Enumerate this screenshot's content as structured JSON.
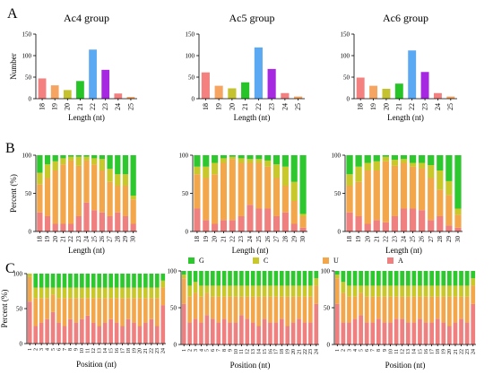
{
  "panel_letters": [
    "A",
    "B",
    "C"
  ],
  "colors": {
    "A": "#F08080",
    "U": "#F4A64A",
    "C": "#C8C82A",
    "G": "#2DC82D"
  },
  "chart_data": [
    {
      "type": "bar",
      "id": "A1",
      "title": "Ac4 group",
      "xlabel": "Length (nt)",
      "ylabel": "Number",
      "ylim": [
        0,
        150
      ],
      "yticks": [
        0,
        50,
        100,
        150
      ],
      "categories": [
        "18",
        "19",
        "20",
        "21",
        "22",
        "23",
        "24",
        "25"
      ],
      "values": [
        47,
        31,
        20,
        41,
        114,
        67,
        12,
        4
      ],
      "bar_colors": [
        "#F4807F",
        "#F6A462",
        "#C4C22E",
        "#27C427",
        "#5BA9F3",
        "#A628E0",
        "#F28080",
        "#F6A462"
      ],
      "grid": false
    },
    {
      "type": "bar",
      "id": "A2",
      "title": "Ac5 group",
      "xlabel": "Length (nt)",
      "ylabel": "",
      "ylim": [
        0,
        150
      ],
      "yticks": [
        0,
        50,
        100,
        150
      ],
      "categories": [
        "18",
        "19",
        "20",
        "21",
        "22",
        "23",
        "24",
        "25"
      ],
      "values": [
        61,
        30,
        24,
        38,
        119,
        69,
        13,
        5
      ],
      "bar_colors": [
        "#F4807F",
        "#F6A462",
        "#C4C22E",
        "#27C427",
        "#5BA9F3",
        "#A628E0",
        "#F28080",
        "#F6A462"
      ],
      "grid": false
    },
    {
      "type": "bar",
      "id": "A3",
      "title": "Ac6 group",
      "xlabel": "Length (nt)",
      "ylabel": "",
      "ylim": [
        0,
        150
      ],
      "yticks": [
        0,
        50,
        100,
        150
      ],
      "categories": [
        "18",
        "19",
        "20",
        "21",
        "22",
        "23",
        "24",
        "25"
      ],
      "values": [
        49,
        30,
        23,
        35,
        112,
        62,
        13,
        5
      ],
      "bar_colors": [
        "#F4807F",
        "#F6A462",
        "#C4C22E",
        "#27C427",
        "#5BA9F3",
        "#A628E0",
        "#F28080",
        "#F6A462"
      ],
      "grid": false
    },
    {
      "type": "bar",
      "stacked": true,
      "id": "B1",
      "xlabel": "Length (nt)",
      "ylabel": "Percent (%)",
      "ylim": [
        0,
        100
      ],
      "yticks": [
        0,
        50,
        100
      ],
      "categories": [
        "18",
        "19",
        "20",
        "21",
        "22",
        "23",
        "24",
        "25",
        "26",
        "27",
        "28",
        "29",
        "30"
      ],
      "series": [
        {
          "name": "A",
          "values": [
            25,
            20,
            10,
            10,
            10,
            20,
            38,
            28,
            25,
            20,
            25,
            20,
            10
          ]
        },
        {
          "name": "U",
          "values": [
            37,
            50,
            70,
            78,
            83,
            66,
            55,
            60,
            55,
            45,
            35,
            40,
            32
          ]
        },
        {
          "name": "C",
          "values": [
            15,
            18,
            12,
            8,
            5,
            12,
            5,
            8,
            15,
            17,
            15,
            15,
            5
          ]
        },
        {
          "name": "G",
          "values": [
            23,
            12,
            8,
            4,
            2,
            2,
            2,
            4,
            5,
            18,
            25,
            25,
            53
          ]
        }
      ]
    },
    {
      "type": "bar",
      "stacked": true,
      "id": "B2",
      "xlabel": "Length (nt)",
      "ylabel": "",
      "ylim": [
        0,
        100
      ],
      "yticks": [
        0,
        50,
        100
      ],
      "categories": [
        "18",
        "19",
        "20",
        "21",
        "22",
        "23",
        "24",
        "25",
        "26",
        "27",
        "28",
        "29",
        "30"
      ],
      "series": [
        {
          "name": "A",
          "values": [
            30,
            15,
            10,
            15,
            15,
            20,
            35,
            30,
            30,
            20,
            25,
            10,
            5
          ]
        },
        {
          "name": "U",
          "values": [
            45,
            55,
            65,
            75,
            80,
            70,
            55,
            60,
            55,
            50,
            35,
            30,
            15
          ]
        },
        {
          "name": "C",
          "values": [
            10,
            15,
            15,
            6,
            3,
            6,
            5,
            5,
            8,
            18,
            25,
            25,
            3
          ]
        },
        {
          "name": "G",
          "values": [
            15,
            15,
            10,
            4,
            2,
            4,
            5,
            5,
            7,
            12,
            15,
            35,
            77
          ]
        }
      ]
    },
    {
      "type": "bar",
      "stacked": true,
      "id": "B3",
      "xlabel": "Length (nt)",
      "ylabel": "",
      "ylim": [
        0,
        100
      ],
      "yticks": [
        0,
        50,
        100
      ],
      "categories": [
        "18",
        "19",
        "20",
        "21",
        "22",
        "23",
        "24",
        "25",
        "26",
        "27",
        "28",
        "29",
        "30"
      ],
      "series": [
        {
          "name": "A",
          "values": [
            25,
            20,
            10,
            15,
            12,
            20,
            30,
            30,
            28,
            15,
            20,
            8,
            5
          ]
        },
        {
          "name": "U",
          "values": [
            35,
            45,
            70,
            65,
            80,
            66,
            60,
            55,
            55,
            55,
            35,
            40,
            17
          ]
        },
        {
          "name": "C",
          "values": [
            15,
            20,
            10,
            12,
            6,
            8,
            5,
            5,
            7,
            17,
            25,
            18,
            8
          ]
        },
        {
          "name": "G",
          "values": [
            25,
            15,
            10,
            8,
            2,
            6,
            5,
            10,
            10,
            13,
            20,
            34,
            70
          ]
        }
      ]
    },
    {
      "type": "bar",
      "stacked": true,
      "id": "C1",
      "xlabel": "Position (nt)",
      "ylabel": "Percent (%)",
      "ylim": [
        0,
        100
      ],
      "yticks": [
        0,
        50,
        100
      ],
      "categories": [
        "1",
        "2",
        "3",
        "4",
        "5",
        "6",
        "7",
        "8",
        "9",
        "10",
        "11",
        "12",
        "13",
        "14",
        "15",
        "16",
        "17",
        "18",
        "19",
        "20",
        "21",
        "22",
        "23",
        "24"
      ],
      "series": [
        {
          "name": "A",
          "values": [
            60,
            25,
            30,
            35,
            45,
            30,
            25,
            35,
            30,
            35,
            40,
            30,
            25,
            30,
            35,
            30,
            25,
            35,
            30,
            25,
            30,
            35,
            25,
            55
          ]
        },
        {
          "name": "U",
          "values": [
            35,
            40,
            35,
            30,
            25,
            35,
            40,
            30,
            35,
            30,
            25,
            35,
            40,
            35,
            30,
            35,
            40,
            30,
            35,
            40,
            35,
            30,
            40,
            25
          ]
        },
        {
          "name": "C",
          "values": [
            5,
            15,
            15,
            15,
            10,
            15,
            15,
            15,
            15,
            15,
            15,
            15,
            15,
            15,
            15,
            15,
            15,
            15,
            15,
            15,
            15,
            15,
            15,
            10
          ]
        },
        {
          "name": "G",
          "values": [
            0,
            20,
            20,
            20,
            20,
            20,
            20,
            20,
            20,
            20,
            20,
            20,
            20,
            20,
            20,
            20,
            20,
            20,
            20,
            20,
            20,
            20,
            20,
            10
          ]
        }
      ],
      "legend": [
        "G",
        "C",
        "U",
        "A"
      ]
    },
    {
      "type": "bar",
      "stacked": true,
      "id": "C2",
      "xlabel": "Position (nt)",
      "ylabel": "",
      "ylim": [
        0,
        100
      ],
      "yticks": [
        0,
        50,
        100
      ],
      "categories": [
        "1",
        "2",
        "3",
        "4",
        "5",
        "6",
        "7",
        "8",
        "9",
        "10",
        "11",
        "12",
        "13",
        "14",
        "15",
        "16",
        "17",
        "18",
        "19",
        "20",
        "21",
        "22",
        "23",
        "24"
      ],
      "series": [
        {
          "name": "A",
          "values": [
            55,
            30,
            35,
            30,
            40,
            35,
            30,
            35,
            30,
            30,
            40,
            35,
            30,
            25,
            35,
            30,
            30,
            35,
            25,
            30,
            35,
            30,
            30,
            55
          ]
        },
        {
          "name": "U",
          "values": [
            35,
            35,
            35,
            35,
            30,
            30,
            35,
            30,
            35,
            35,
            25,
            30,
            35,
            40,
            30,
            35,
            35,
            30,
            40,
            35,
            30,
            35,
            35,
            25
          ]
        },
        {
          "name": "C",
          "values": [
            5,
            15,
            15,
            15,
            10,
            15,
            15,
            15,
            15,
            15,
            15,
            15,
            15,
            15,
            15,
            15,
            15,
            15,
            15,
            15,
            15,
            15,
            15,
            10
          ]
        },
        {
          "name": "G",
          "values": [
            5,
            20,
            15,
            20,
            20,
            20,
            20,
            20,
            20,
            20,
            20,
            20,
            20,
            20,
            20,
            20,
            20,
            20,
            20,
            20,
            20,
            20,
            20,
            10
          ]
        }
      ]
    },
    {
      "type": "bar",
      "stacked": true,
      "id": "C3",
      "xlabel": "Position (nt)",
      "ylabel": "",
      "ylim": [
        0,
        100
      ],
      "yticks": [
        0,
        50,
        100
      ],
      "categories": [
        "1",
        "2",
        "3",
        "4",
        "5",
        "6",
        "7",
        "8",
        "9",
        "10",
        "11",
        "12",
        "13",
        "14",
        "15",
        "16",
        "17",
        "18",
        "19",
        "20",
        "21",
        "22",
        "23",
        "24"
      ],
      "series": [
        {
          "name": "A",
          "values": [
            55,
            30,
            30,
            35,
            40,
            30,
            30,
            35,
            30,
            30,
            35,
            35,
            30,
            30,
            35,
            30,
            30,
            35,
            30,
            25,
            30,
            35,
            30,
            55
          ]
        },
        {
          "name": "U",
          "values": [
            35,
            40,
            35,
            30,
            30,
            35,
            35,
            30,
            35,
            35,
            30,
            30,
            35,
            35,
            30,
            35,
            35,
            30,
            35,
            40,
            35,
            30,
            35,
            25
          ]
        },
        {
          "name": "C",
          "values": [
            5,
            15,
            15,
            15,
            10,
            15,
            15,
            15,
            15,
            15,
            15,
            15,
            15,
            15,
            15,
            15,
            15,
            15,
            15,
            15,
            15,
            15,
            15,
            10
          ]
        },
        {
          "name": "G",
          "values": [
            5,
            15,
            20,
            20,
            20,
            20,
            20,
            20,
            20,
            20,
            20,
            20,
            20,
            20,
            20,
            20,
            20,
            20,
            20,
            20,
            20,
            20,
            20,
            10
          ]
        }
      ]
    }
  ]
}
